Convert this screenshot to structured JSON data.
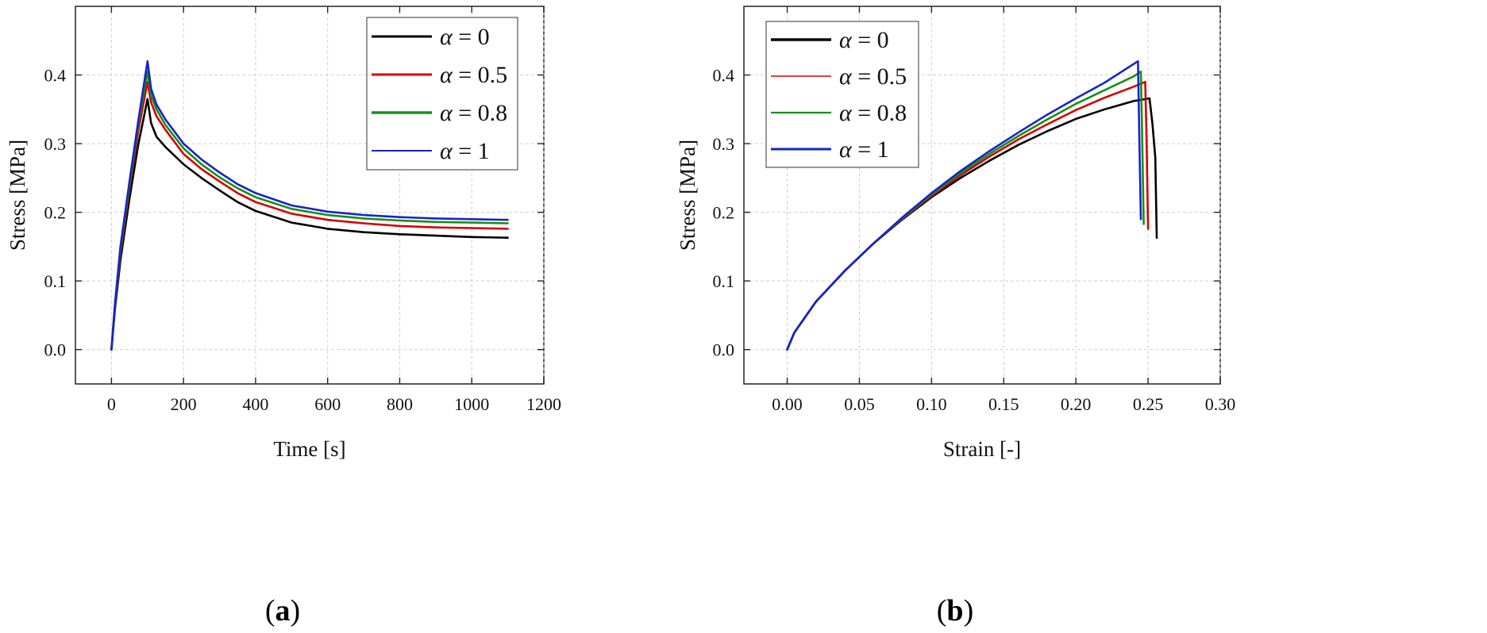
{
  "chart_data": [
    {
      "type": "line",
      "panel_label": "(a)",
      "panel_letter": "a",
      "xlabel": "Time [s]",
      "ylabel": "Stress [MPa]",
      "xlim": [
        -100,
        1200
      ],
      "ylim": [
        -0.05,
        0.5
      ],
      "xticks": [
        0,
        200,
        400,
        600,
        800,
        1000,
        1200
      ],
      "xtick_labels": [
        "0",
        "200",
        "400",
        "600",
        "800",
        "1000",
        "1200"
      ],
      "yticks": [
        0.0,
        0.1,
        0.2,
        0.3,
        0.4
      ],
      "ytick_labels": [
        "0.0",
        "0.1",
        "0.2",
        "0.3",
        "0.4"
      ],
      "grid": true,
      "legend_position": "top-right",
      "series": [
        {
          "name": "α = 0",
          "greek": "α",
          "rest": " = 0",
          "color": "#000000",
          "x": [
            0,
            10,
            25,
            50,
            75,
            100,
            110,
            125,
            150,
            200,
            250,
            300,
            350,
            400,
            500,
            600,
            700,
            800,
            900,
            1000,
            1100
          ],
          "y": [
            0.0,
            0.06,
            0.13,
            0.22,
            0.3,
            0.365,
            0.33,
            0.31,
            0.295,
            0.27,
            0.25,
            0.232,
            0.215,
            0.202,
            0.185,
            0.176,
            0.171,
            0.168,
            0.166,
            0.164,
            0.163
          ]
        },
        {
          "name": "α = 0.5",
          "greek": "α",
          "rest": " = 0.5",
          "color": "#d40000",
          "x": [
            0,
            10,
            25,
            50,
            75,
            100,
            110,
            125,
            150,
            200,
            250,
            300,
            350,
            400,
            500,
            600,
            700,
            800,
            900,
            1000,
            1100
          ],
          "y": [
            0.0,
            0.065,
            0.14,
            0.235,
            0.32,
            0.39,
            0.36,
            0.34,
            0.32,
            0.285,
            0.263,
            0.245,
            0.228,
            0.215,
            0.198,
            0.189,
            0.184,
            0.18,
            0.178,
            0.177,
            0.176
          ]
        },
        {
          "name": "α = 0.8",
          "greek": "α",
          "rest": " = 0.8",
          "color": "#159015",
          "x": [
            0,
            10,
            25,
            50,
            75,
            100,
            110,
            125,
            150,
            200,
            250,
            300,
            350,
            400,
            500,
            600,
            700,
            800,
            900,
            1000,
            1100
          ],
          "y": [
            0.0,
            0.066,
            0.145,
            0.24,
            0.33,
            0.405,
            0.37,
            0.35,
            0.327,
            0.293,
            0.27,
            0.251,
            0.235,
            0.222,
            0.205,
            0.196,
            0.191,
            0.188,
            0.186,
            0.185,
            0.184
          ]
        },
        {
          "name": "α = 1",
          "greek": "α",
          "rest": " = 1",
          "color": "#1525c8",
          "x": [
            0,
            10,
            25,
            50,
            75,
            100,
            110,
            125,
            150,
            200,
            250,
            300,
            350,
            400,
            500,
            600,
            700,
            800,
            900,
            1000,
            1100
          ],
          "y": [
            0.0,
            0.068,
            0.15,
            0.245,
            0.335,
            0.42,
            0.38,
            0.357,
            0.335,
            0.3,
            0.277,
            0.258,
            0.241,
            0.228,
            0.21,
            0.201,
            0.196,
            0.193,
            0.191,
            0.19,
            0.189
          ]
        }
      ]
    },
    {
      "type": "line",
      "panel_label": "(b)",
      "panel_letter": "b",
      "xlabel": "Strain [-]",
      "ylabel": "Stress [MPa]",
      "xlim": [
        -0.03,
        0.3
      ],
      "ylim": [
        -0.05,
        0.5
      ],
      "xticks": [
        0.0,
        0.05,
        0.1,
        0.15,
        0.2,
        0.25,
        0.3
      ],
      "xtick_labels": [
        "0.00",
        "0.05",
        "0.10",
        "0.15",
        "0.20",
        "0.25",
        "0.30"
      ],
      "yticks": [
        0.0,
        0.1,
        0.2,
        0.3,
        0.4
      ],
      "ytick_labels": [
        "0.0",
        "0.1",
        "0.2",
        "0.3",
        "0.4"
      ],
      "grid": true,
      "legend_position": "top-left",
      "series": [
        {
          "name": "α = 0",
          "greek": "α",
          "rest": " = 0",
          "color": "#000000",
          "x": [
            0,
            0.005,
            0.01,
            0.02,
            0.04,
            0.06,
            0.08,
            0.1,
            0.12,
            0.14,
            0.16,
            0.18,
            0.2,
            0.22,
            0.24,
            0.251,
            0.253,
            0.255,
            0.256
          ],
          "y": [
            0,
            0.025,
            0.04,
            0.07,
            0.115,
            0.155,
            0.19,
            0.222,
            0.25,
            0.275,
            0.298,
            0.318,
            0.336,
            0.35,
            0.362,
            0.366,
            0.33,
            0.28,
            0.163
          ]
        },
        {
          "name": "α = 0.5",
          "greek": "α",
          "rest": " = 0.5",
          "color": "#d40000",
          "x": [
            0,
            0.005,
            0.01,
            0.02,
            0.04,
            0.06,
            0.08,
            0.1,
            0.12,
            0.14,
            0.16,
            0.18,
            0.2,
            0.22,
            0.24,
            0.248,
            0.249,
            0.25
          ],
          "y": [
            0,
            0.025,
            0.04,
            0.07,
            0.115,
            0.155,
            0.191,
            0.224,
            0.254,
            0.281,
            0.306,
            0.328,
            0.349,
            0.367,
            0.383,
            0.39,
            0.3,
            0.176
          ]
        },
        {
          "name": "α = 0.8",
          "greek": "α",
          "rest": " = 0.8",
          "color": "#159015",
          "x": [
            0,
            0.005,
            0.01,
            0.02,
            0.04,
            0.06,
            0.08,
            0.1,
            0.12,
            0.14,
            0.16,
            0.18,
            0.2,
            0.22,
            0.24,
            0.245,
            0.246,
            0.247
          ],
          "y": [
            0,
            0.025,
            0.04,
            0.07,
            0.115,
            0.155,
            0.192,
            0.226,
            0.257,
            0.285,
            0.311,
            0.335,
            0.358,
            0.378,
            0.398,
            0.405,
            0.3,
            0.183
          ]
        },
        {
          "name": "α = 1",
          "greek": "α",
          "rest": " = 1",
          "color": "#1525c8",
          "x": [
            0,
            0.005,
            0.01,
            0.02,
            0.04,
            0.06,
            0.08,
            0.1,
            0.12,
            0.14,
            0.16,
            0.18,
            0.2,
            0.22,
            0.243,
            0.244,
            0.245
          ],
          "y": [
            0,
            0.025,
            0.04,
            0.07,
            0.115,
            0.155,
            0.193,
            0.228,
            0.26,
            0.289,
            0.316,
            0.342,
            0.366,
            0.389,
            0.42,
            0.3,
            0.19
          ]
        }
      ]
    }
  ]
}
